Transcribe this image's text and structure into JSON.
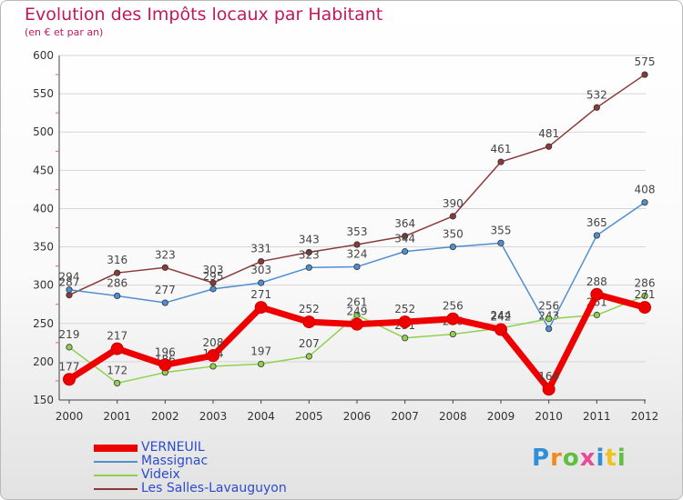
{
  "chart_data": {
    "type": "line",
    "title": "Evolution des Impôts locaux par Habitant",
    "subtitle": "(en € et par an)",
    "xlabel": "",
    "ylabel": "",
    "ylim": [
      150,
      600
    ],
    "y_ticks": [
      150,
      200,
      250,
      300,
      350,
      400,
      450,
      500,
      550,
      600
    ],
    "categories": [
      "2000",
      "2001",
      "2002",
      "2003",
      "2004",
      "2005",
      "2006",
      "2007",
      "2008",
      "2009",
      "2010",
      "2011",
      "2012"
    ],
    "series": [
      {
        "name": "Les Salles-Lavauguyon",
        "color": "#8b3a3a",
        "values": [
          287,
          316,
          323,
          303,
          331,
          343,
          353,
          364,
          390,
          461,
          481,
          532,
          575
        ]
      },
      {
        "name": "Massignac",
        "color": "#4f8fd0",
        "values": [
          294,
          286,
          277,
          295,
          303,
          323,
          324,
          344,
          350,
          355,
          243,
          365,
          408
        ]
      },
      {
        "name": "Videix",
        "color": "#8fd14f",
        "values": [
          219,
          172,
          186,
          194,
          197,
          207,
          261,
          231,
          236,
          244,
          256,
          261,
          286
        ]
      },
      {
        "name": "VERNEUIL",
        "color": "#ee0000",
        "values": [
          177,
          217,
          196,
          208,
          271,
          252,
          249,
          252,
          256,
          242,
          164,
          288,
          271
        ]
      }
    ],
    "legend": [
      "VERNEUIL",
      "Massignac",
      "Videix",
      "Les Salles-Lavauguyon"
    ]
  },
  "logo": {
    "text": "Proxiti"
  }
}
